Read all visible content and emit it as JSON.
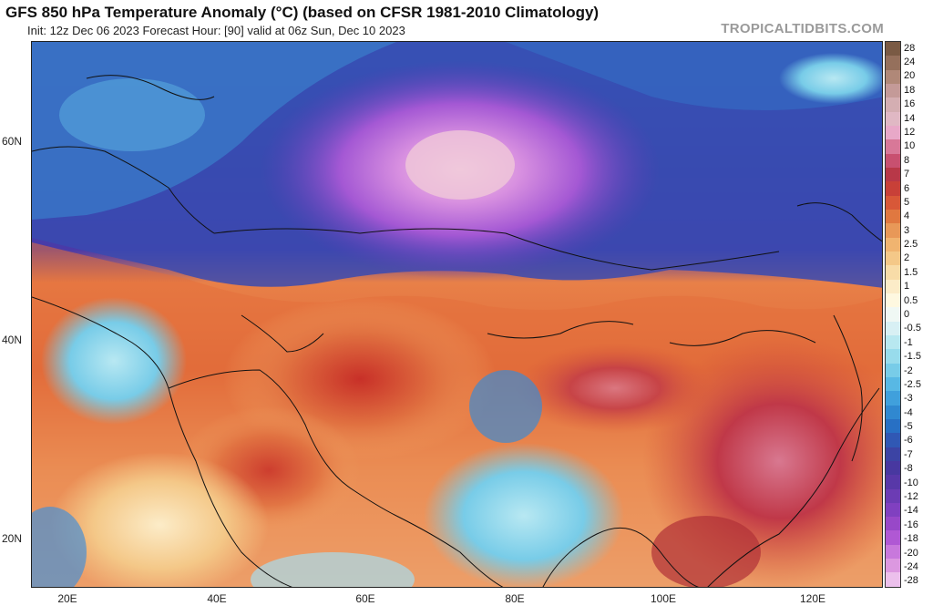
{
  "header": {
    "title": "GFS 850 hPa Temperature Anomaly (°C) (based on CFSR 1981-2010 Climatology)",
    "subtitle": "Init: 12z Dec 06 2023   Forecast Hour: [90]   valid at 06z Sun, Dec 10 2023",
    "brand": "TROPICALTIDBITS.COM"
  },
  "map": {
    "lat_labels": [
      "60N",
      "40N",
      "20N"
    ],
    "lon_labels": [
      "20E",
      "40E",
      "60E",
      "80E",
      "100E",
      "120E"
    ]
  },
  "colorbar": {
    "labels": [
      "28",
      "24",
      "20",
      "18",
      "16",
      "14",
      "12",
      "10",
      "8",
      "7",
      "6",
      "5",
      "4",
      "3",
      "2.5",
      "2",
      "1.5",
      "1",
      "0.5",
      "0",
      "-0.5",
      "-1",
      "-1.5",
      "-2",
      "-2.5",
      "-3",
      "-4",
      "-5",
      "-6",
      "-7",
      "-8",
      "-10",
      "-12",
      "-14",
      "-16",
      "-18",
      "-20",
      "-24",
      "-28"
    ],
    "colors": [
      "#7a5a44",
      "#95705c",
      "#b08878",
      "#c49a98",
      "#d4aeb2",
      "#e0b8c4",
      "#e8a8c8",
      "#d87898",
      "#c85070",
      "#b83848",
      "#c84038",
      "#d85838",
      "#e07840",
      "#e89858",
      "#f0b470",
      "#f4c888",
      "#f8dca8",
      "#fcecc8",
      "#fef8e0",
      "#f0f8f4",
      "#d8f0f4",
      "#b8e8f0",
      "#98dcec",
      "#78cce8",
      "#58b8e4",
      "#40a0dc",
      "#3088d0",
      "#2870c4",
      "#3058b4",
      "#3c44a4",
      "#4838a0",
      "#5838a8",
      "#6c3cb4",
      "#8040c0",
      "#9848c8",
      "#b058d4",
      "#c878dc",
      "#dc98e0",
      "#ecc0ec"
    ]
  }
}
